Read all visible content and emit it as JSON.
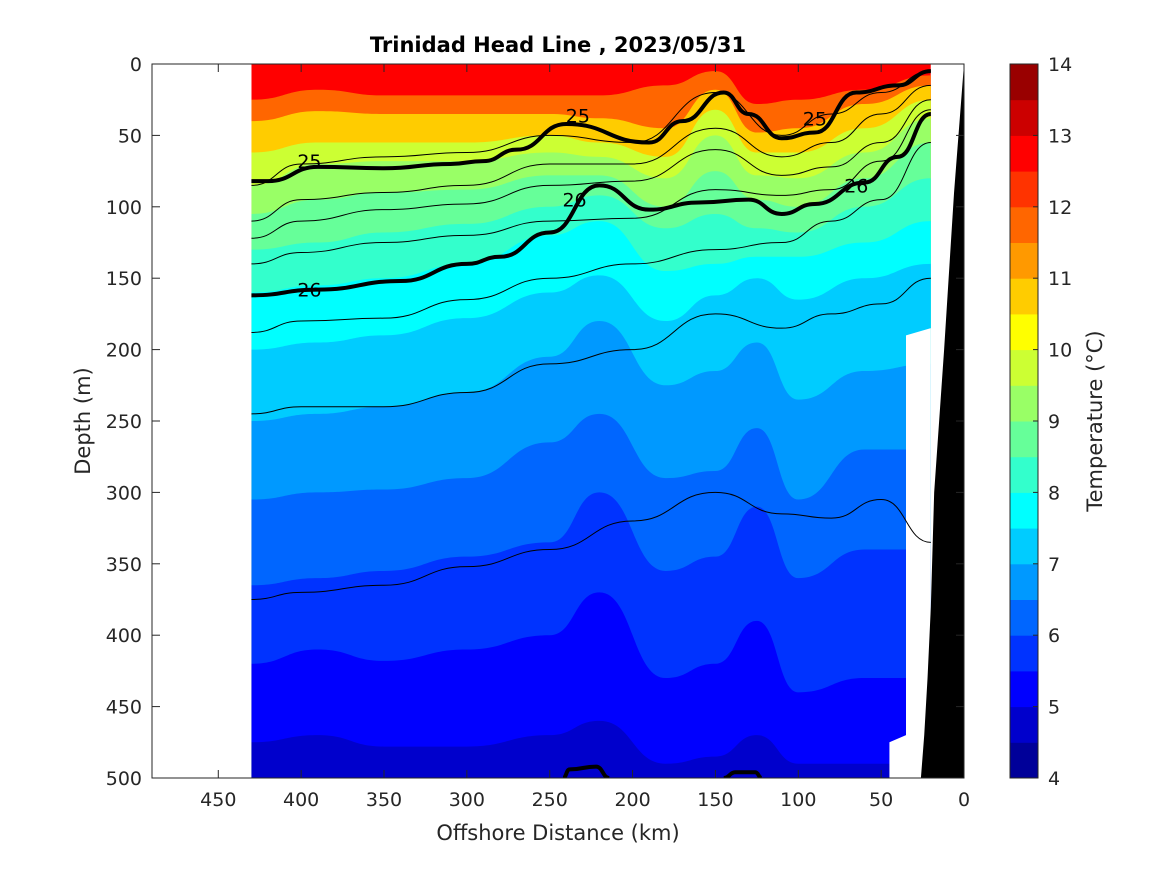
{
  "chart_data": {
    "type": "heatmap",
    "subtype": "filled-contour-section",
    "title": "Trinidad Head Line , 2023/05/31",
    "xlabel": "Offshore Distance (km)",
    "ylabel": "Depth (m)",
    "x_reversed": true,
    "y_reversed": true,
    "xlim": [
      0,
      490
    ],
    "ylim": [
      0,
      500
    ],
    "x_ticks": [
      "450",
      "400",
      "350",
      "300",
      "250",
      "200",
      "150",
      "100",
      "50",
      "0"
    ],
    "x_tick_values": [
      450,
      400,
      350,
      300,
      250,
      200,
      150,
      100,
      50,
      0
    ],
    "y_ticks": [
      "0",
      "50",
      "100",
      "150",
      "200",
      "250",
      "300",
      "350",
      "400",
      "450",
      "500"
    ],
    "y_tick_values": [
      0,
      50,
      100,
      150,
      200,
      250,
      300,
      350,
      400,
      450,
      500
    ],
    "colorbar": {
      "label": "Temperature (°C)",
      "range": [
        4,
        14
      ],
      "step": 0.5,
      "ticks": [
        "4",
        "5",
        "6",
        "7",
        "8",
        "9",
        "10",
        "11",
        "12",
        "13",
        "14"
      ],
      "tick_values": [
        4,
        5,
        6,
        7,
        8,
        9,
        10,
        11,
        12,
        13,
        14
      ],
      "colormap": "jet"
    },
    "data_extent_km": [
      20,
      430
    ],
    "temperature_isotherms": [
      {
        "temp": 12,
        "x": [
          430,
          390,
          350,
          300,
          250,
          220,
          180,
          150,
          125,
          100,
          60,
          20
        ],
        "depth": [
          25,
          18,
          22,
          22,
          22,
          22,
          15,
          5,
          28,
          25,
          18,
          8
        ]
      },
      {
        "temp": 11,
        "x": [
          430,
          390,
          350,
          300,
          250,
          220,
          180,
          150,
          125,
          100,
          60,
          20
        ],
        "depth": [
          40,
          33,
          35,
          35,
          35,
          38,
          45,
          18,
          48,
          45,
          28,
          15
        ]
      },
      {
        "temp": 10,
        "x": [
          430,
          390,
          350,
          300,
          250,
          220,
          180,
          150,
          125,
          100,
          60,
          20
        ],
        "depth": [
          62,
          55,
          55,
          55,
          50,
          55,
          65,
          32,
          62,
          62,
          45,
          25
        ]
      },
      {
        "temp": 9.5,
        "x": [
          430,
          390,
          350,
          300,
          250,
          220,
          180,
          150,
          125,
          100,
          60,
          20
        ],
        "depth": [
          85,
          70,
          68,
          68,
          62,
          65,
          80,
          50,
          78,
          80,
          62,
          38
        ]
      },
      {
        "temp": 9,
        "x": [
          430,
          390,
          350,
          300,
          250,
          220,
          180,
          150,
          125,
          100,
          60,
          20
        ],
        "depth": [
          105,
          95,
          90,
          88,
          78,
          78,
          100,
          75,
          95,
          100,
          80,
          55
        ]
      },
      {
        "temp": 8.5,
        "x": [
          430,
          390,
          350,
          300,
          250,
          220,
          180,
          150,
          125,
          100,
          60,
          20
        ],
        "depth": [
          130,
          125,
          118,
          112,
          100,
          92,
          115,
          105,
          115,
          118,
          100,
          80
        ]
      },
      {
        "temp": 8,
        "x": [
          430,
          390,
          350,
          300,
          250,
          220,
          180,
          150,
          125,
          100,
          60,
          20
        ],
        "depth": [
          160,
          155,
          150,
          140,
          120,
          110,
          145,
          140,
          135,
          135,
          125,
          110
        ]
      },
      {
        "temp": 7.5,
        "x": [
          430,
          390,
          350,
          300,
          250,
          220,
          180,
          150,
          125,
          100,
          60,
          20
        ],
        "depth": [
          200,
          195,
          190,
          178,
          160,
          148,
          180,
          162,
          150,
          165,
          150,
          140
        ]
      },
      {
        "temp": 7,
        "x": [
          430,
          390,
          350,
          300,
          250,
          220,
          180,
          150,
          125,
          100,
          60,
          20
        ],
        "depth": [
          250,
          245,
          240,
          230,
          205,
          180,
          225,
          215,
          195,
          235,
          215,
          210
        ]
      },
      {
        "temp": 6.5,
        "x": [
          430,
          390,
          350,
          300,
          250,
          220,
          180,
          150,
          125,
          100,
          60,
          20
        ],
        "depth": [
          305,
          300,
          298,
          290,
          265,
          245,
          290,
          285,
          255,
          305,
          270,
          270
        ]
      },
      {
        "temp": 6,
        "x": [
          430,
          390,
          350,
          300,
          250,
          220,
          180,
          150,
          125,
          100,
          60,
          20
        ],
        "depth": [
          365,
          360,
          355,
          345,
          335,
          300,
          355,
          345,
          310,
          360,
          340,
          340
        ]
      },
      {
        "temp": 5.5,
        "x": [
          430,
          390,
          350,
          300,
          250,
          220,
          180,
          150,
          125,
          100,
          60,
          20
        ],
        "depth": [
          420,
          410,
          418,
          410,
          400,
          370,
          430,
          420,
          390,
          440,
          430,
          430
        ]
      },
      {
        "temp": 5,
        "x": [
          430,
          390,
          350,
          300,
          250,
          220,
          180,
          150,
          125,
          100,
          60,
          20
        ],
        "depth": [
          475,
          470,
          478,
          478,
          470,
          460,
          490,
          485,
          470,
          490,
          490,
          490
        ]
      }
    ],
    "density_contours": [
      {
        "x": [
          430,
          400,
          350,
          300,
          250,
          200,
          150,
          110,
          80,
          50,
          20
        ],
        "depth": [
          85,
          70,
          65,
          62,
          50,
          55,
          20,
          50,
          35,
          20,
          5
        ]
      },
      {
        "x": [
          430,
          400,
          350,
          300,
          250,
          200,
          150,
          110,
          80,
          50,
          20
        ],
        "depth": [
          110,
          95,
          90,
          85,
          70,
          70,
          45,
          65,
          55,
          35,
          15
        ]
      },
      {
        "x": [
          430,
          400,
          350,
          300,
          250,
          200,
          150,
          110,
          80,
          50,
          20
        ],
        "depth": [
          122,
          110,
          102,
          98,
          85,
          82,
          60,
          78,
          72,
          55,
          25
        ]
      },
      {
        "x": [
          430,
          400,
          350,
          300,
          250,
          200,
          150,
          110,
          80,
          50,
          20
        ],
        "depth": [
          140,
          132,
          125,
          120,
          110,
          108,
          88,
          92,
          88,
          68,
          32
        ]
      },
      {
        "x": [
          430,
          400,
          350,
          300,
          250,
          200,
          150,
          110,
          80,
          50,
          20
        ],
        "depth": [
          188,
          180,
          178,
          165,
          150,
          140,
          130,
          125,
          110,
          95,
          55
        ]
      },
      {
        "x": [
          430,
          400,
          350,
          300,
          250,
          200,
          150,
          110,
          80,
          50,
          20
        ],
        "depth": [
          245,
          240,
          240,
          230,
          210,
          200,
          175,
          185,
          175,
          168,
          150
        ]
      },
      {
        "x": [
          430,
          400,
          350,
          300,
          250,
          200,
          150,
          110,
          80,
          50,
          20
        ],
        "depth": [
          375,
          370,
          365,
          352,
          340,
          320,
          300,
          315,
          318,
          305,
          335
        ]
      }
    ],
    "labeled_contours": [
      {
        "label": "25",
        "x": [
          430,
          420,
          390,
          350,
          310,
          290,
          270,
          240,
          190,
          170,
          145,
          130,
          110,
          90,
          65,
          40,
          20
        ],
        "depth": [
          82,
          82,
          72,
          73,
          70,
          68,
          60,
          42,
          55,
          40,
          20,
          35,
          52,
          48,
          20,
          15,
          5
        ]
      },
      {
        "label": "26",
        "x": [
          430,
          390,
          340,
          300,
          280,
          250,
          220,
          190,
          160,
          130,
          110,
          90,
          60,
          40,
          20
        ],
        "depth": [
          162,
          158,
          152,
          140,
          135,
          118,
          85,
          102,
          97,
          95,
          105,
          98,
          83,
          65,
          35
        ]
      }
    ],
    "label_positions": [
      {
        "label": "25",
        "x": 395,
        "depth": 68
      },
      {
        "label": "25",
        "x": 233,
        "depth": 36
      },
      {
        "label": "25",
        "x": 90,
        "depth": 38
      },
      {
        "label": "26",
        "x": 235,
        "depth": 95
      },
      {
        "label": "26",
        "x": 65,
        "depth": 85
      },
      {
        "label": "26",
        "x": 395,
        "depth": 158
      }
    ],
    "bottom_contours": [
      {
        "x": [
          242,
          238,
          222,
          214
        ],
        "depth": [
          500,
          494,
          492,
          500
        ]
      },
      {
        "x": [
          145,
          138,
          126,
          122
        ],
        "depth": [
          500,
          496,
          496,
          500
        ]
      }
    ],
    "bathymetry": {
      "color": "#000000",
      "x": [
        0,
        6,
        12,
        18,
        20,
        22,
        24,
        26
      ],
      "depth": [
        0,
        90,
        200,
        300,
        380,
        430,
        470,
        500
      ]
    }
  }
}
